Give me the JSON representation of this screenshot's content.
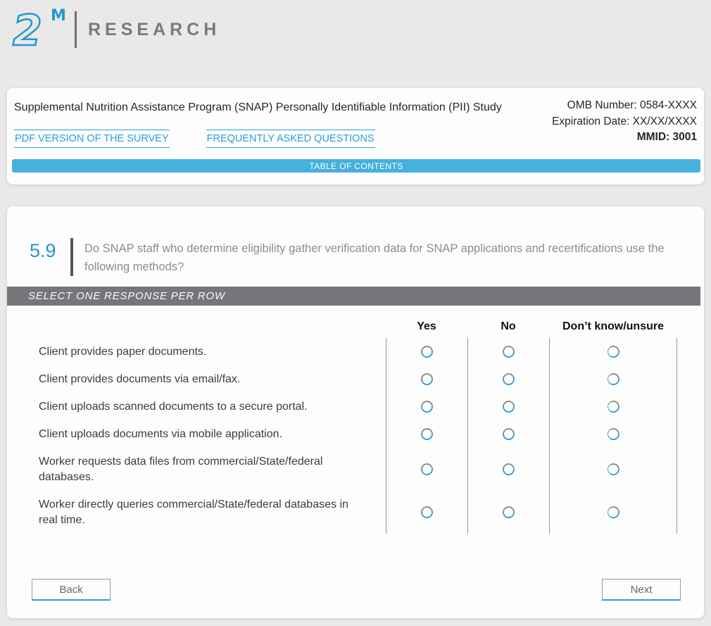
{
  "brand": {
    "mark_numeral": "2",
    "mark_letter": "M",
    "name": "RESEARCH"
  },
  "colors": {
    "accent_blue": "#2aa0d8",
    "toc_bar_blue": "#45b1dc",
    "instruction_bar_gray": "#77757a",
    "page_background": "#e9e9e9"
  },
  "header": {
    "title": "Supplemental Nutrition Assistance Program (SNAP) Personally Identifiable Information (PII) Study",
    "omb_number": "OMB Number: 0584-XXXX",
    "expiration_date": "Expiration Date: XX/XX/XXXX",
    "mmid": "MMID: 3001",
    "links": [
      {
        "label": "PDF VERSION OF THE SURVEY"
      },
      {
        "label": "FREQUENTLY ASKED QUESTIONS"
      }
    ],
    "toc_label": "TABLE OF CONTENTS"
  },
  "question": {
    "number": "5.9",
    "text": "Do SNAP staff who determine eligibility gather verification data for SNAP applications and recertifications use the following methods?",
    "instruction": "SELECT ONE RESPONSE PER ROW"
  },
  "table": {
    "columns": [
      "Yes",
      "No",
      "Don’t know/unsure"
    ],
    "rows": [
      "Client provides paper documents.",
      "Client provides documents via email/fax.",
      "Client uploads scanned documents to a secure portal.",
      "Client uploads documents via mobile application.",
      "Worker requests data files from commercial/State/federal databases.",
      "Worker directly queries commercial/State/federal databases in real time."
    ],
    "selected": null
  },
  "footer": {
    "back_label": "Back",
    "next_label": "Next"
  }
}
